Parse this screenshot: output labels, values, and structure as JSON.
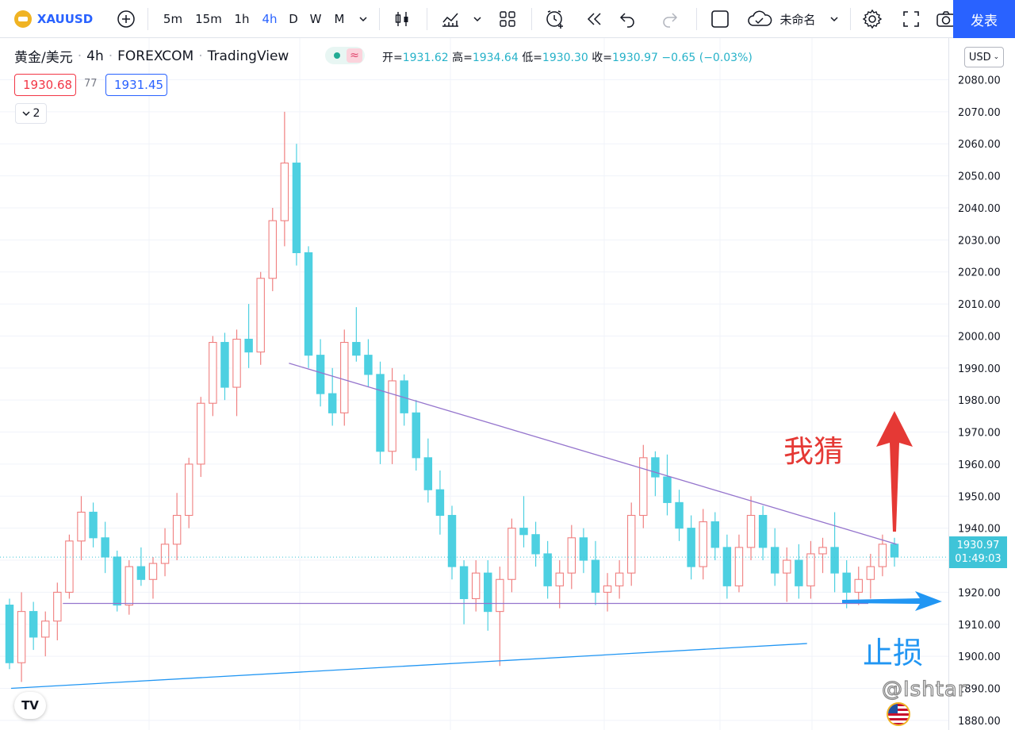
{
  "toolbar": {
    "symbol": "XAUUSD",
    "intervals": [
      "5m",
      "15m",
      "1h",
      "4h",
      "D",
      "W",
      "M"
    ],
    "active_interval": "4h",
    "layout_name": "未命名",
    "publish_label": "发表"
  },
  "legend": {
    "title_parts": [
      "黄金/美元",
      "4h",
      "FOREXCOM",
      "TradingView"
    ],
    "open_label": "开=",
    "open": "1931.62",
    "high_label": "高=",
    "high": "1934.64",
    "low_label": "低=",
    "low": "1930.30",
    "close_label": "收=",
    "close": "1930.97",
    "change": "−0.65 (−0.03%)",
    "bid": "1930.68",
    "spread": "77",
    "ask": "1931.45",
    "indicator_count": "2",
    "status_symbol": "≈"
  },
  "price_axis": {
    "currency": "USD",
    "ticks": [
      "2080.00",
      "2070.00",
      "2060.00",
      "2050.00",
      "2040.00",
      "2030.00",
      "2020.00",
      "2010.00",
      "2000.00",
      "1990.00",
      "1980.00",
      "1970.00",
      "1960.00",
      "1950.00",
      "1940.00",
      "1930.00",
      "1920.00",
      "1910.00",
      "1900.00",
      "1890.00",
      "1880.00"
    ],
    "last_price": "1930.97",
    "countdown": "01:49:03"
  },
  "annotations": {
    "guess_text": "我猜",
    "stop_text": "止损",
    "watermark": "@Ishtar"
  },
  "colors": {
    "up": "#f08080",
    "down": "#4dd0e1",
    "trendline": "#9575cd",
    "support_line": "#2196f3",
    "annotation_red": "#e53935",
    "annotation_blue": "#2196f3",
    "accent": "#2962ff"
  },
  "chart_data": {
    "type": "candlestick",
    "symbol": "XAUUSD",
    "interval": "4h",
    "ylim": [
      1877,
      2093
    ],
    "ohlc": [
      [
        1916,
        1918,
        1896,
        1898
      ],
      [
        1898,
        1920,
        1892,
        1914
      ],
      [
        1914,
        1917,
        1902,
        1906
      ],
      [
        1906,
        1914,
        1900,
        1911
      ],
      [
        1911,
        1923,
        1905,
        1920
      ],
      [
        1920,
        1938,
        1918,
        1936
      ],
      [
        1936,
        1950,
        1930,
        1945
      ],
      [
        1945,
        1948,
        1934,
        1937
      ],
      [
        1937,
        1942,
        1926,
        1931
      ],
      [
        1931,
        1933,
        1914,
        1916
      ],
      [
        1916,
        1930,
        1913,
        1928
      ],
      [
        1928,
        1934,
        1922,
        1924
      ],
      [
        1924,
        1931,
        1918,
        1929
      ],
      [
        1929,
        1940,
        1925,
        1935
      ],
      [
        1935,
        1951,
        1930,
        1944
      ],
      [
        1944,
        1962,
        1940,
        1960
      ],
      [
        1960,
        1981,
        1956,
        1979
      ],
      [
        1979,
        2000,
        1975,
        1998
      ],
      [
        1998,
        2001,
        1980,
        1984
      ],
      [
        1984,
        2002,
        1975,
        1999
      ],
      [
        1999,
        2010,
        1990,
        1995
      ],
      [
        1995,
        2020,
        1991,
        2018
      ],
      [
        2018,
        2040,
        2014,
        2036
      ],
      [
        2036,
        2070,
        2028,
        2054
      ],
      [
        2054,
        2060,
        2022,
        2026
      ],
      [
        2026,
        2028,
        1990,
        1994
      ],
      [
        1994,
        1999,
        1978,
        1982
      ],
      [
        1982,
        1990,
        1972,
        1976
      ],
      [
        1976,
        2002,
        1972,
        1998
      ],
      [
        1998,
        2009,
        1992,
        1994
      ],
      [
        1994,
        1999,
        1984,
        1988
      ],
      [
        1988,
        1992,
        1960,
        1964
      ],
      [
        1964,
        1990,
        1960,
        1986
      ],
      [
        1986,
        1988,
        1972,
        1976
      ],
      [
        1976,
        1980,
        1958,
        1962
      ],
      [
        1962,
        1968,
        1948,
        1952
      ],
      [
        1952,
        1958,
        1938,
        1944
      ],
      [
        1944,
        1947,
        1924,
        1928
      ],
      [
        1928,
        1930,
        1910,
        1918
      ],
      [
        1918,
        1930,
        1914,
        1926
      ],
      [
        1926,
        1930,
        1908,
        1914
      ],
      [
        1914,
        1928,
        1897,
        1924
      ],
      [
        1924,
        1943,
        1920,
        1940
      ],
      [
        1940,
        1950,
        1934,
        1938
      ],
      [
        1938,
        1942,
        1928,
        1932
      ],
      [
        1932,
        1936,
        1918,
        1922
      ],
      [
        1922,
        1930,
        1915,
        1926
      ],
      [
        1926,
        1941,
        1921,
        1937
      ],
      [
        1937,
        1940,
        1926,
        1930
      ],
      [
        1930,
        1936,
        1916,
        1920
      ],
      [
        1920,
        1926,
        1914,
        1922
      ],
      [
        1922,
        1930,
        1918,
        1926
      ],
      [
        1926,
        1948,
        1922,
        1944
      ],
      [
        1944,
        1966,
        1940,
        1962
      ],
      [
        1962,
        1964,
        1950,
        1956
      ],
      [
        1956,
        1963,
        1944,
        1948
      ],
      [
        1948,
        1952,
        1936,
        1940
      ],
      [
        1940,
        1944,
        1924,
        1928
      ],
      [
        1928,
        1946,
        1924,
        1942
      ],
      [
        1942,
        1945,
        1930,
        1934
      ],
      [
        1934,
        1938,
        1918,
        1922
      ],
      [
        1922,
        1938,
        1920,
        1934
      ],
      [
        1934,
        1950,
        1930,
        1944
      ],
      [
        1944,
        1947,
        1930,
        1934
      ],
      [
        1934,
        1940,
        1922,
        1926
      ],
      [
        1926,
        1934,
        1917,
        1930
      ],
      [
        1930,
        1935,
        1918,
        1922
      ],
      [
        1922,
        1936,
        1918,
        1932
      ],
      [
        1932,
        1937,
        1926,
        1934
      ],
      [
        1934,
        1945,
        1920,
        1926
      ],
      [
        1926,
        1930,
        1915,
        1920
      ],
      [
        1920,
        1928,
        1916,
        1924
      ],
      [
        1924,
        1932,
        1918,
        1928
      ],
      [
        1928,
        1938,
        1925,
        1935
      ],
      [
        1935,
        1937,
        1928,
        1931
      ]
    ],
    "trendlines": [
      {
        "name": "descending-resistance",
        "from": [
          1991.5,
          0.3
        ],
        "to": [
          1935,
          0.945
        ]
      },
      {
        "name": "horizontal-support",
        "from": [
          1916.5,
          0.06
        ],
        "to": [
          1916.5,
          0.915
        ]
      },
      {
        "name": "rising-support",
        "from": [
          1890,
          0.005
        ],
        "to": [
          1904,
          0.85
        ]
      }
    ]
  }
}
